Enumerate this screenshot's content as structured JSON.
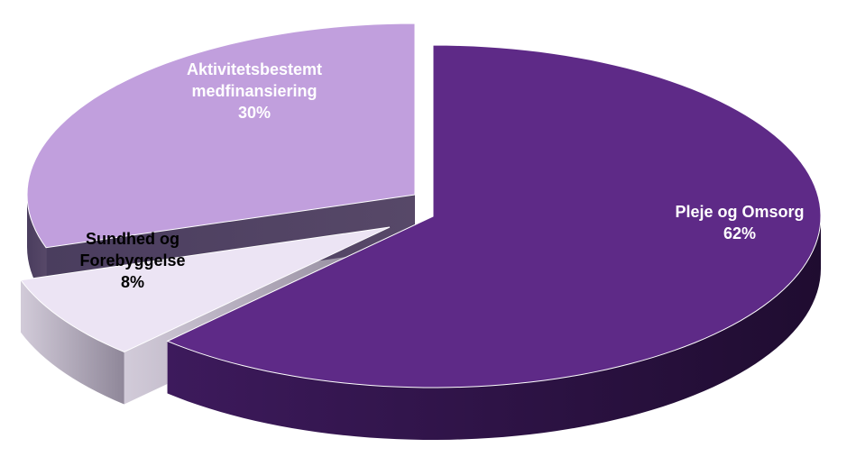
{
  "chart_data": {
    "type": "pie",
    "title": "",
    "legend": "none",
    "slices": [
      {
        "label_lines": [
          "Pleje og Omsorg"
        ],
        "percent_label": "62%",
        "value": 62,
        "color": "#5E2A87",
        "label_color": "#FFFFFF"
      },
      {
        "label_lines": [
          "Sundhed og",
          "Forebyggelse"
        ],
        "percent_label": "8%",
        "value": 8,
        "color": "#ECE4F4",
        "label_color": "#000000"
      },
      {
        "label_lines": [
          "Aktivitetsbestemt",
          "medfinansiering"
        ],
        "percent_label": "30%",
        "value": 30,
        "color": "#C19FDD",
        "label_color": "#FFFFFF"
      }
    ]
  }
}
